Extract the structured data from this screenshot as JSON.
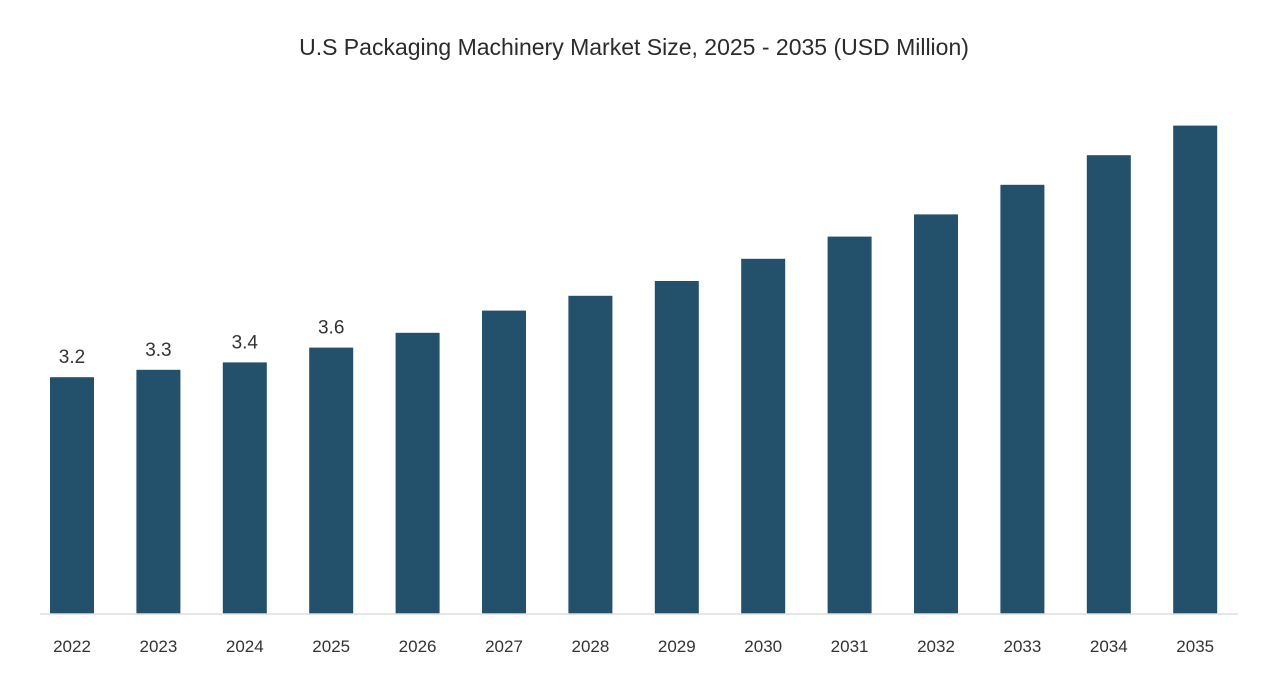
{
  "chart_data": {
    "type": "bar",
    "title": "U.S Packaging Machinery Market Size, 2025 - 2035 (USD Million)",
    "xlabel": "",
    "ylabel": "",
    "categories": [
      "2022",
      "2023",
      "2024",
      "2025",
      "2026",
      "2027",
      "2028",
      "2029",
      "2030",
      "2031",
      "2032",
      "2033",
      "2034",
      "2035"
    ],
    "values": [
      3.2,
      3.3,
      3.4,
      3.6,
      3.8,
      4.1,
      4.3,
      4.5,
      4.8,
      5.1,
      5.4,
      5.8,
      6.2,
      6.6
    ],
    "data_labels": [
      "3.2",
      "3.3",
      "3.4",
      "3.6",
      "",
      "",
      "",
      "",
      "",
      "",
      "",
      "",
      "",
      ""
    ],
    "ylim": [
      0,
      7.2
    ],
    "grid": false,
    "legend": "none",
    "colors": {
      "bar": "#23506a",
      "axis": "#dddddd"
    }
  }
}
